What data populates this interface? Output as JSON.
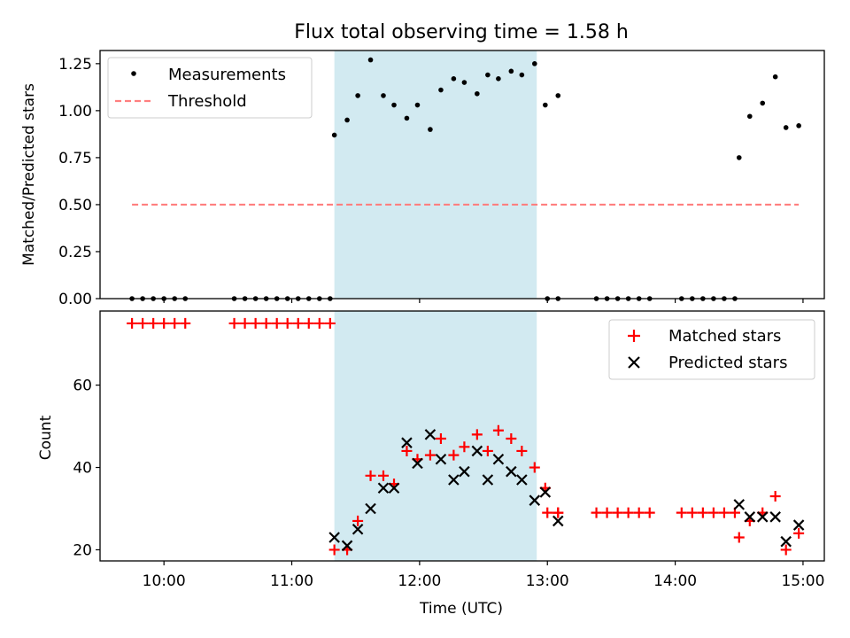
{
  "title": "Flux total observing time = 1.58 h",
  "chart_data": [
    {
      "type": "scatter",
      "xlabel": "",
      "ylabel": "Matched/Predicted stars",
      "xlim": [
        "09:30",
        "15:10"
      ],
      "ylim": [
        0,
        1.32
      ],
      "yticks": [
        0.0,
        0.25,
        0.5,
        0.75,
        1.0,
        1.25
      ],
      "ytick_labels": [
        "0.00",
        "0.25",
        "0.50",
        "0.75",
        "1.00",
        "1.25"
      ],
      "xticks": [
        "10:00",
        "11:00",
        "12:00",
        "13:00",
        "14:00",
        "15:00"
      ],
      "show_xtick_labels": false,
      "grid": false,
      "legend_placement": "upper-left",
      "shaded_interval": {
        "start": "11:20",
        "end": "12:55",
        "color": "#add8e6"
      },
      "series": [
        {
          "name": "Measurements",
          "marker": "dot",
          "color": "#000000",
          "points": [
            [
              "09:45",
              0
            ],
            [
              "09:50",
              0
            ],
            [
              "09:55",
              0
            ],
            [
              "10:00",
              0
            ],
            [
              "10:05",
              0
            ],
            [
              "10:10",
              0
            ],
            [
              "10:33",
              0
            ],
            [
              "10:38",
              0
            ],
            [
              "10:43",
              0
            ],
            [
              "10:48",
              0
            ],
            [
              "10:53",
              0
            ],
            [
              "10:58",
              0
            ],
            [
              "11:03",
              0
            ],
            [
              "11:08",
              0
            ],
            [
              "11:13",
              0
            ],
            [
              "11:18",
              0
            ],
            [
              "11:20",
              0.87
            ],
            [
              "11:26",
              0.95
            ],
            [
              "11:31",
              1.08
            ],
            [
              "11:37",
              1.27
            ],
            [
              "11:43",
              1.08
            ],
            [
              "11:48",
              1.03
            ],
            [
              "11:54",
              0.96
            ],
            [
              "11:59",
              1.03
            ],
            [
              "12:05",
              0.9
            ],
            [
              "12:10",
              1.11
            ],
            [
              "12:16",
              1.17
            ],
            [
              "12:21",
              1.15
            ],
            [
              "12:27",
              1.09
            ],
            [
              "12:32",
              1.19
            ],
            [
              "12:37",
              1.17
            ],
            [
              "12:43",
              1.21
            ],
            [
              "12:48",
              1.19
            ],
            [
              "12:54",
              1.25
            ],
            [
              "12:59",
              1.03
            ],
            [
              "13:05",
              1.08
            ],
            [
              "13:00",
              0
            ],
            [
              "13:05",
              0
            ],
            [
              "13:23",
              0
            ],
            [
              "13:28",
              0
            ],
            [
              "13:33",
              0
            ],
            [
              "13:38",
              0
            ],
            [
              "13:43",
              0
            ],
            [
              "13:48",
              0
            ],
            [
              "14:03",
              0
            ],
            [
              "14:08",
              0
            ],
            [
              "14:13",
              0
            ],
            [
              "14:18",
              0
            ],
            [
              "14:23",
              0
            ],
            [
              "14:28",
              0
            ],
            [
              "14:30",
              0.75
            ],
            [
              "14:35",
              0.97
            ],
            [
              "14:41",
              1.04
            ],
            [
              "14:47",
              1.18
            ],
            [
              "14:52",
              0.91
            ],
            [
              "14:58",
              0.92
            ]
          ]
        },
        {
          "name": "Threshold",
          "marker": "dashed-line",
          "color": "#ff7f7f",
          "points": [
            [
              "09:45",
              0.5
            ],
            [
              "14:58",
              0.5
            ]
          ]
        }
      ]
    },
    {
      "type": "scatter",
      "xlabel": "Time (UTC)",
      "ylabel": "Count",
      "xlim": [
        "09:30",
        "15:10"
      ],
      "ylim": [
        17.3,
        78
      ],
      "yticks": [
        20,
        40,
        60
      ],
      "ytick_labels": [
        "20",
        "40",
        "60"
      ],
      "xticks": [
        "10:00",
        "11:00",
        "12:00",
        "13:00",
        "14:00",
        "15:00"
      ],
      "xtick_labels": [
        "10:00",
        "11:00",
        "12:00",
        "13:00",
        "14:00",
        "15:00"
      ],
      "grid": false,
      "legend_placement": "upper-right",
      "shaded_interval": {
        "start": "11:20",
        "end": "12:55",
        "color": "#add8e6"
      },
      "series": [
        {
          "name": "Matched stars",
          "marker": "plus",
          "color": "#ff0000",
          "points": [
            [
              "09:45",
              75
            ],
            [
              "09:50",
              75
            ],
            [
              "09:55",
              75
            ],
            [
              "10:00",
              75
            ],
            [
              "10:05",
              75
            ],
            [
              "10:10",
              75
            ],
            [
              "10:33",
              75
            ],
            [
              "10:38",
              75
            ],
            [
              "10:43",
              75
            ],
            [
              "10:48",
              75
            ],
            [
              "10:53",
              75
            ],
            [
              "10:58",
              75
            ],
            [
              "11:03",
              75
            ],
            [
              "11:08",
              75
            ],
            [
              "11:13",
              75
            ],
            [
              "11:18",
              75
            ],
            [
              "11:20",
              20
            ],
            [
              "11:26",
              20
            ],
            [
              "11:31",
              27
            ],
            [
              "11:37",
              38
            ],
            [
              "11:43",
              38
            ],
            [
              "11:48",
              36
            ],
            [
              "11:54",
              44
            ],
            [
              "11:59",
              42
            ],
            [
              "12:05",
              43
            ],
            [
              "12:10",
              47
            ],
            [
              "12:16",
              43
            ],
            [
              "12:21",
              45
            ],
            [
              "12:27",
              48
            ],
            [
              "12:32",
              44
            ],
            [
              "12:37",
              49
            ],
            [
              "12:43",
              47
            ],
            [
              "12:48",
              44
            ],
            [
              "12:54",
              40
            ],
            [
              "12:59",
              35
            ],
            [
              "13:05",
              29
            ],
            [
              "13:00",
              29
            ],
            [
              "13:05",
              29
            ],
            [
              "13:23",
              29
            ],
            [
              "13:28",
              29
            ],
            [
              "13:33",
              29
            ],
            [
              "13:38",
              29
            ],
            [
              "13:43",
              29
            ],
            [
              "13:48",
              29
            ],
            [
              "14:03",
              29
            ],
            [
              "14:08",
              29
            ],
            [
              "14:13",
              29
            ],
            [
              "14:18",
              29
            ],
            [
              "14:23",
              29
            ],
            [
              "14:28",
              29
            ],
            [
              "14:30",
              23
            ],
            [
              "14:35",
              27
            ],
            [
              "14:41",
              29
            ],
            [
              "14:47",
              33
            ],
            [
              "14:52",
              20
            ],
            [
              "14:58",
              24
            ]
          ]
        },
        {
          "name": "Predicted stars",
          "marker": "x",
          "color": "#000000",
          "points": [
            [
              "11:20",
              23
            ],
            [
              "11:26",
              21
            ],
            [
              "11:31",
              25
            ],
            [
              "11:37",
              30
            ],
            [
              "11:43",
              35
            ],
            [
              "11:48",
              35
            ],
            [
              "11:54",
              46
            ],
            [
              "11:59",
              41
            ],
            [
              "12:05",
              48
            ],
            [
              "12:10",
              42
            ],
            [
              "12:16",
              37
            ],
            [
              "12:21",
              39
            ],
            [
              "12:27",
              44
            ],
            [
              "12:32",
              37
            ],
            [
              "12:37",
              42
            ],
            [
              "12:43",
              39
            ],
            [
              "12:48",
              37
            ],
            [
              "12:54",
              32
            ],
            [
              "12:59",
              34
            ],
            [
              "13:05",
              27
            ],
            [
              "14:30",
              31
            ],
            [
              "14:35",
              28
            ],
            [
              "14:41",
              28
            ],
            [
              "14:47",
              28
            ],
            [
              "14:52",
              22
            ],
            [
              "14:58",
              26
            ]
          ]
        }
      ]
    }
  ]
}
